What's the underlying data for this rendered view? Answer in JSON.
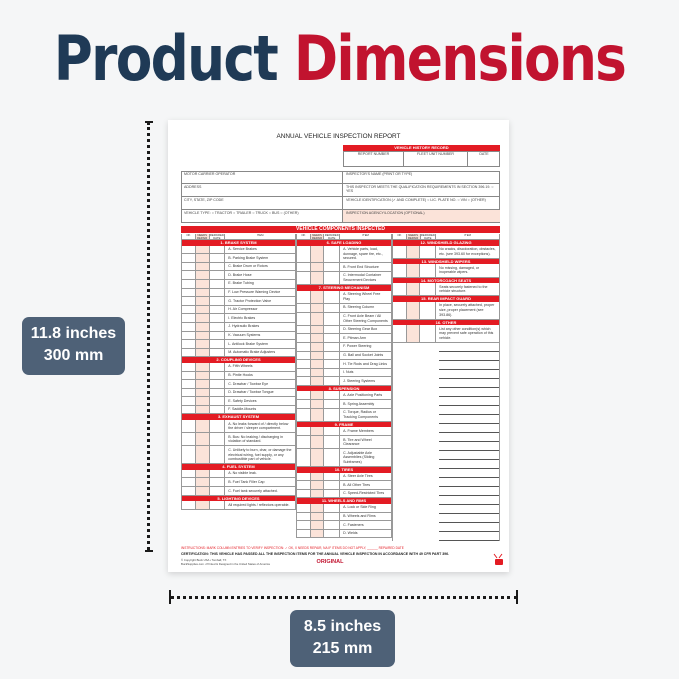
{
  "headline": {
    "part1": "Product",
    "part2": "Dimensions"
  },
  "height_badge": {
    "inches": "11.8 inches",
    "mm": "300 mm"
  },
  "width_badge": {
    "inches": "8.5 inches",
    "mm": "215 mm"
  },
  "colors": {
    "navy": "#1f3a56",
    "red": "#c1132f",
    "badge": "#4e6177",
    "form_red": "#e31b23"
  },
  "form": {
    "title": "ANNUAL VEHICLE INSPECTION REPORT",
    "history": {
      "title": "VEHICLE HISTORY RECORD",
      "cols": [
        "REPORT NUMBER",
        "FLEET UNIT NUMBER",
        "DATE"
      ]
    },
    "left_fields": [
      "MOTOR CARRIER OPERATOR",
      "ADDRESS",
      "CITY, STATE, ZIP CODE",
      "VEHICLE TYPE:  ○ TRACTOR   ○ TRAILER   ○ TRUCK   ○ BUS   ○ (OTHER)"
    ],
    "right_fields": [
      "INSPECTOR'S NAME (PRINT OR TYPE)",
      "THIS INSPECTOR MEETS THE QUALIFICATION REQUIREMENTS IN SECTION 396.19.  ○ YES",
      "VEHICLE IDENTIFICATION (✓ AND COMPLETE)  ○ LIC. PLATE NO.  ○ VIN  ○ (OTHER)",
      "INSPECTION AGENCY/LOCATION (OPTIONAL)"
    ],
    "components_title": "VEHICLE COMPONENTS INSPECTED",
    "col_headers": [
      "OK",
      "NEEDS REPAIR",
      "REPAIRED DATE",
      "ITEM"
    ],
    "columns": [
      [
        {
          "title": "1. BRAKE SYSTEM",
          "items": [
            "A.  Service Brakes",
            "B.  Parking Brake System",
            "C.  Brake Drum or Rotors",
            "D.  Brake Hose",
            "E.  Brake Tubing",
            "F.  Low Pressure Warning Device",
            "G.  Tractor Protection Valve",
            "H.  Air Compressor",
            "I.  Electric Brakes",
            "J.  Hydraulic Brakes",
            "K.  Vacuum Systems",
            "L.  Antilock Brake System",
            "M.  Automatic Brake Adjusters"
          ]
        },
        {
          "title": "2. COUPLING DEVICES",
          "items": [
            "A.  Fifth Wheels",
            "B.  Pintle Hooks",
            "C.  Drawbar / Towbar Eye",
            "D.  Drawbar / Towbar Tongue",
            "E.  Safety Devices",
            "F.  Saddle-Mounts"
          ]
        },
        {
          "title": "3. EXHAUST SYSTEM",
          "items": [
            "A.  No leaks forward of / directly below the driver / sleeper compartment.",
            "B.  Bus: No leaking / discharging in violation of standard.",
            "C.  Unlikely to burn, char, or damage the electrical wiring, fuel supply, or any combustible part of vehicle."
          ]
        },
        {
          "title": "4. FUEL SYSTEM",
          "items": [
            "A.  No visible leak.",
            "B.  Fuel Tank Filler Cap",
            "C.  Fuel tank securely attached."
          ]
        },
        {
          "title": "5. LIGHTING DEVICES",
          "items": [
            "All required lights / reflectors operable."
          ]
        }
      ],
      [
        {
          "title": "6. SAFE LOADING",
          "items": [
            "A.  Vehicle parts, load, dunnage, spare tire, etc., secured.",
            "B.  Front End Structure",
            "C.  Intermodal Container Securement Devices"
          ]
        },
        {
          "title": "7. STEERING MECHANISM",
          "items": [
            "A.  Steering Wheel Free Play",
            "B.  Steering Column",
            "C.  Front Axle Beam / All Other Steering Components",
            "D.  Steering Gear Box",
            "E.  Pitman Arm",
            "F.  Power Steering",
            "G.  Ball and Socket Joints",
            "H.  Tie Rods and Drag Links",
            "I.  Nuts",
            "J.  Steering Systems"
          ]
        },
        {
          "title": "8. SUSPENSION",
          "items": [
            "A.  Axle Positioning Parts",
            "B.  Spring Assembly",
            "C.  Torque, Radius or Tracking Components"
          ]
        },
        {
          "title": "9. FRAME",
          "items": [
            "A.  Frame Members",
            "B.  Tire and Wheel Clearance",
            "C.  Adjustable Axle Assemblies (Sliding Subframes)"
          ]
        },
        {
          "title": "10. TIRES",
          "items": [
            "A.  Steer Axle Tires",
            "B.  All Other Tires",
            "C.  Speed-Restricted Tires"
          ]
        },
        {
          "title": "11. WHEELS AND RIMS",
          "items": [
            "A.  Lock or Side Ring",
            "B.  Wheels and Rims",
            "C.  Fasteners",
            "D.  Welds"
          ]
        }
      ],
      [
        {
          "title": "12. WINDSHIELD GLAZING",
          "items": [
            "No cracks, discoloration, obstacles, etc. (see 393.60 for exceptions)."
          ]
        },
        {
          "title": "13. WINDSHIELD WIPERS",
          "items": [
            "No missing, damaged, or inoperable wipers."
          ]
        },
        {
          "title": "14. MOTORCOACH SEATS",
          "items": [
            "Seats securely fastened to the vehicle structure."
          ]
        },
        {
          "title": "15. REAR IMPACT GUARD",
          "items": [
            "In place, securely attached, proper size, proper placement (see 393.86)."
          ]
        },
        {
          "title": "16. OTHER",
          "items": [
            "List any other condition(s) which may prevent safe operation of this vehicle."
          ]
        }
      ]
    ],
    "instructions": "INSTRUCTIONS: MARK COLUMN ENTRIES TO VERIFY INSPECTION:   ✓  OK,   X  NEEDS REPAIR,   NA  IF ITEMS DO NOT APPLY,   ______  REPAIRED DATE",
    "certification": "CERTIFICATION: THIS VEHICLE HAS PASSED ALL THE INSPECTION ITEMS FOR THE ANNUAL VEHICLE INSPECTION IN ACCORDANCE WITH 49 CFR PART 396.",
    "copyright": "© Copyright Buck USA • Tomball, TX",
    "printed": "BuckSupplies.com • Printed & Designed in the United States of America",
    "copy_label": "ORIGINAL"
  }
}
